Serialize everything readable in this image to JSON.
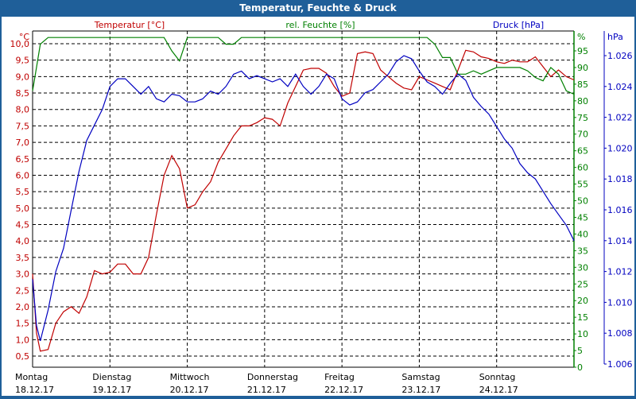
{
  "window": {
    "title": "Temperatur, Feuchte & Druck"
  },
  "legend": {
    "temperature": "Temperatur [°C]",
    "humidity": "rel. Feuchte [%]",
    "pressure": "Druck [hPa]"
  },
  "colors": {
    "temperature": "#c00000",
    "humidity": "#008000",
    "pressure": "#0000c0",
    "titlebar": "#1f5f99"
  },
  "axes": {
    "left": {
      "unit": "°C",
      "ticks": [
        "10,0",
        "9,5",
        "9,0",
        "8,5",
        "8,0",
        "7,5",
        "7,0",
        "6,5",
        "6,0",
        "5,5",
        "5,0",
        "4,5",
        "4,0",
        "3,5",
        "3,0",
        "2,5",
        "2,0",
        "1,5",
        "1,0",
        "0,5"
      ]
    },
    "right1": {
      "unit": "%",
      "ticks": [
        "95",
        "90",
        "85",
        "80",
        "75",
        "70",
        "65",
        "60",
        "55",
        "50",
        "45",
        "40",
        "35",
        "30",
        "25",
        "20",
        "15",
        "10",
        "5",
        "0"
      ]
    },
    "right2": {
      "unit": "hPa",
      "ticks": [
        "1.026",
        "1.024",
        "1.022",
        "1.020",
        "1.018",
        "1.016",
        "1.014",
        "1.012",
        "1.010",
        "1.008",
        "1.006"
      ]
    }
  },
  "days": [
    {
      "name": "Montag",
      "date": "18.12.17"
    },
    {
      "name": "Dienstag",
      "date": "19.12.17"
    },
    {
      "name": "Mittwoch",
      "date": "20.12.17"
    },
    {
      "name": "Donnerstag",
      "date": "21.12.17"
    },
    {
      "name": "Freitag",
      "date": "22.12.17"
    },
    {
      "name": "Samstag",
      "date": "23.12.17"
    },
    {
      "name": "Sonntag",
      "date": "24.12.17"
    }
  ],
  "chart_data": {
    "type": "line",
    "title": "Temperatur, Feuchte & Druck",
    "xlabel": "",
    "categories": [
      "Mo 18.12.17",
      "Di 19.12.17",
      "Mi 20.12.17",
      "Do 21.12.17",
      "Fr 22.12.17",
      "Sa 23.12.17",
      "So 24.12.17"
    ],
    "x_days": [
      0,
      0.05,
      0.1,
      0.2,
      0.3,
      0.4,
      0.5,
      0.6,
      0.7,
      0.8,
      0.9,
      1.0,
      1.1,
      1.2,
      1.3,
      1.4,
      1.5,
      1.6,
      1.7,
      1.8,
      1.9,
      2.0,
      2.1,
      2.2,
      2.3,
      2.4,
      2.5,
      2.6,
      2.7,
      2.8,
      2.9,
      3.0,
      3.1,
      3.2,
      3.3,
      3.4,
      3.5,
      3.6,
      3.7,
      3.8,
      3.9,
      4.0,
      4.1,
      4.2,
      4.3,
      4.4,
      4.5,
      4.6,
      4.7,
      4.8,
      4.9,
      5.0,
      5.1,
      5.2,
      5.3,
      5.4,
      5.5,
      5.6,
      5.7,
      5.8,
      5.9,
      6.0,
      6.1,
      6.2,
      6.3,
      6.4,
      6.5,
      6.6,
      6.7,
      6.8,
      6.9,
      7.0
    ],
    "series": [
      {
        "name": "Temperatur [°C]",
        "axis": "left",
        "ylim": [
          0.2,
          10.3
        ],
        "values": [
          3.0,
          1.2,
          0.65,
          0.7,
          1.5,
          1.85,
          2.0,
          1.8,
          2.3,
          3.1,
          3.0,
          3.05,
          3.3,
          3.3,
          3.0,
          3.0,
          3.5,
          4.8,
          6.0,
          6.6,
          6.2,
          5.0,
          5.1,
          5.5,
          5.8,
          6.4,
          6.8,
          7.2,
          7.5,
          7.5,
          7.6,
          7.75,
          7.7,
          7.5,
          8.2,
          8.7,
          9.2,
          9.25,
          9.25,
          9.1,
          8.7,
          8.4,
          8.5,
          9.7,
          9.75,
          9.7,
          9.2,
          9.0,
          8.8,
          8.65,
          8.6,
          9.0,
          8.9,
          8.8,
          8.7,
          8.6,
          9.2,
          9.8,
          9.75,
          9.6,
          9.55,
          9.45,
          9.4,
          9.5,
          9.45,
          9.45,
          9.6,
          9.3,
          9.0,
          9.2,
          9.0,
          8.9
        ]
      },
      {
        "name": "rel. Feuchte [%]",
        "axis": "right1",
        "ylim": [
          0,
          100
        ],
        "values": [
          83,
          90,
          97,
          99,
          99,
          99,
          99,
          99,
          99,
          99,
          99,
          99,
          99,
          99,
          99,
          99,
          99,
          99,
          99,
          95,
          92,
          99,
          99,
          99,
          99,
          99,
          97,
          97,
          99,
          99,
          99,
          99,
          99,
          99,
          99,
          99,
          99,
          99,
          99,
          99,
          99,
          99,
          99,
          99,
          99,
          99,
          99,
          99,
          99,
          99,
          99,
          99,
          99,
          97,
          93,
          93,
          88,
          88,
          89,
          88,
          89,
          90,
          90,
          90,
          90,
          89,
          87,
          86,
          90,
          88,
          83,
          82
        ]
      },
      {
        "name": "Druck [hPa]",
        "axis": "right2",
        "ylim": [
          1.0055,
          1.0275
        ],
        "values": [
          1.0115,
          1.0085,
          1.0075,
          1.0095,
          1.012,
          1.0135,
          1.016,
          1.0185,
          1.0205,
          1.0215,
          1.0225,
          1.024,
          1.0245,
          1.0245,
          1.024,
          1.0235,
          1.024,
          1.0232,
          1.023,
          1.0235,
          1.0234,
          1.023,
          1.023,
          1.0232,
          1.0237,
          1.0235,
          1.024,
          1.0248,
          1.025,
          1.0245,
          1.0247,
          1.0245,
          1.0243,
          1.0245,
          1.024,
          1.0248,
          1.024,
          1.0235,
          1.024,
          1.0248,
          1.0245,
          1.0232,
          1.0228,
          1.023,
          1.0236,
          1.0238,
          1.0243,
          1.0248,
          1.0256,
          1.026,
          1.0258,
          1.025,
          1.0243,
          1.024,
          1.0235,
          1.0242,
          1.0248,
          1.0244,
          1.0233,
          1.0227,
          1.0222,
          1.0214,
          1.0206,
          1.02,
          1.019,
          1.0184,
          1.018,
          1.0172,
          1.0164,
          1.0157,
          1.015,
          1.014
        ]
      }
    ],
    "grid": true,
    "legend_position": "top"
  }
}
